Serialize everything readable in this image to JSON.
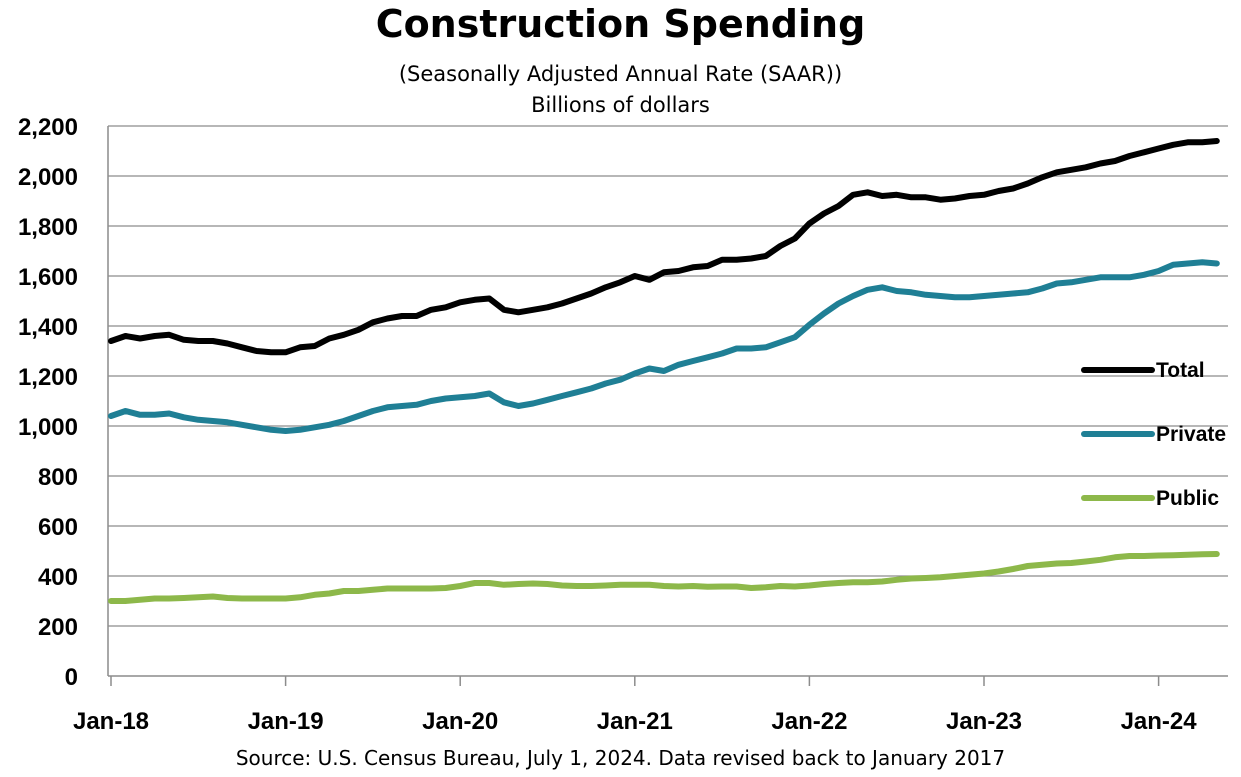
{
  "chart_data": {
    "type": "line",
    "title": "Construction Spending",
    "subtitle": "(Seasonally Adjusted Annual Rate (SAAR))",
    "units_label": "Billions of dollars",
    "source": "Source: U.S. Census Bureau, July 1, 2024. Data revised back to January 2017",
    "x_tick_labels": [
      "Jan-18",
      "Jan-19",
      "Jan-20",
      "Jan-21",
      "Jan-22",
      "Jan-23",
      "Jan-24"
    ],
    "x_start": "Jan-18",
    "x_end": "May-24",
    "ylim": [
      0,
      2200
    ],
    "y_ticks": [
      0,
      200,
      400,
      600,
      800,
      1000,
      1200,
      1400,
      1600,
      1800,
      2000,
      2200
    ],
    "y_tick_labels": [
      "0",
      "200",
      "400",
      "600",
      "800",
      "1,000",
      "1,200",
      "1,400",
      "1,600",
      "1,800",
      "2,000",
      "2,200"
    ],
    "grid": "horizontal",
    "legend_position": "right",
    "series": [
      {
        "name": "Total",
        "color": "#000000",
        "values": [
          1340,
          1360,
          1350,
          1360,
          1365,
          1345,
          1340,
          1340,
          1330,
          1315,
          1300,
          1295,
          1295,
          1315,
          1320,
          1350,
          1365,
          1385,
          1415,
          1430,
          1440,
          1440,
          1465,
          1475,
          1495,
          1505,
          1510,
          1465,
          1455,
          1465,
          1475,
          1490,
          1510,
          1530,
          1555,
          1575,
          1600,
          1585,
          1615,
          1620,
          1635,
          1640,
          1665,
          1665,
          1670,
          1680,
          1720,
          1750,
          1810,
          1850,
          1880,
          1925,
          1935,
          1920,
          1925,
          1915,
          1915,
          1905,
          1910,
          1920,
          1925,
          1940,
          1950,
          1970,
          1995,
          2015,
          2025,
          2035,
          2050,
          2060,
          2080,
          2095,
          2110,
          2125,
          2135,
          2135,
          2140
        ]
      },
      {
        "name": "Private",
        "color": "#1f7f95",
        "values": [
          1040,
          1060,
          1045,
          1045,
          1050,
          1035,
          1025,
          1020,
          1015,
          1005,
          995,
          985,
          980,
          985,
          995,
          1005,
          1020,
          1040,
          1060,
          1075,
          1080,
          1085,
          1100,
          1110,
          1115,
          1120,
          1130,
          1095,
          1080,
          1090,
          1105,
          1120,
          1135,
          1150,
          1170,
          1185,
          1210,
          1230,
          1220,
          1245,
          1260,
          1275,
          1290,
          1310,
          1310,
          1315,
          1335,
          1355,
          1405,
          1450,
          1490,
          1520,
          1545,
          1555,
          1540,
          1535,
          1525,
          1520,
          1515,
          1515,
          1520,
          1525,
          1530,
          1535,
          1550,
          1570,
          1575,
          1585,
          1595,
          1595,
          1595,
          1605,
          1620,
          1645,
          1650,
          1655,
          1650
        ]
      },
      {
        "name": "Public",
        "color": "#8db84a",
        "values": [
          300,
          300,
          305,
          310,
          310,
          312,
          315,
          318,
          312,
          310,
          310,
          310,
          310,
          315,
          325,
          330,
          340,
          340,
          345,
          350,
          350,
          350,
          350,
          352,
          360,
          372,
          372,
          365,
          368,
          370,
          368,
          362,
          360,
          360,
          362,
          365,
          365,
          365,
          360,
          358,
          360,
          357,
          358,
          358,
          352,
          355,
          360,
          358,
          362,
          368,
          372,
          375,
          375,
          378,
          385,
          390,
          392,
          395,
          400,
          405,
          410,
          418,
          428,
          440,
          445,
          450,
          452,
          458,
          465,
          475,
          480,
          480,
          482,
          483,
          485,
          487,
          488
        ]
      }
    ]
  }
}
